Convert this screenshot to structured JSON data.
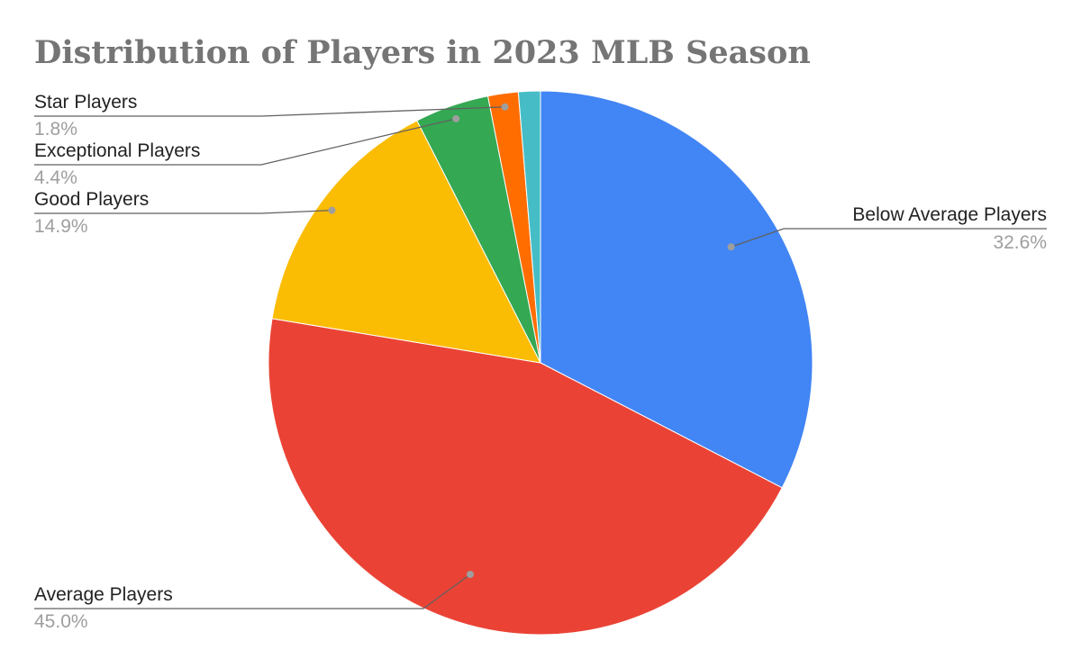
{
  "chart_data": {
    "type": "pie",
    "title": "Distribution of Players in 2023 MLB Season",
    "start_angle_deg": 0,
    "direction": "clockwise",
    "slices": [
      {
        "label": "Below Average Players",
        "value": 32.6,
        "percent_label": "32.6%",
        "color": "#4285f4"
      },
      {
        "label": "Average Players",
        "value": 45.0,
        "percent_label": "45.0%",
        "color": "#ea4335"
      },
      {
        "label": "Good Players",
        "value": 14.9,
        "percent_label": "14.9%",
        "color": "#fbbc04"
      },
      {
        "label": "Exceptional Players",
        "value": 4.4,
        "percent_label": "4.4%",
        "color": "#34a853"
      },
      {
        "label": "Star Players",
        "value": 1.8,
        "percent_label": "1.8%",
        "color": "#ff6d01"
      },
      {
        "label": "",
        "value": 1.3,
        "percent_label": "",
        "color": "#46bdc6"
      }
    ]
  }
}
